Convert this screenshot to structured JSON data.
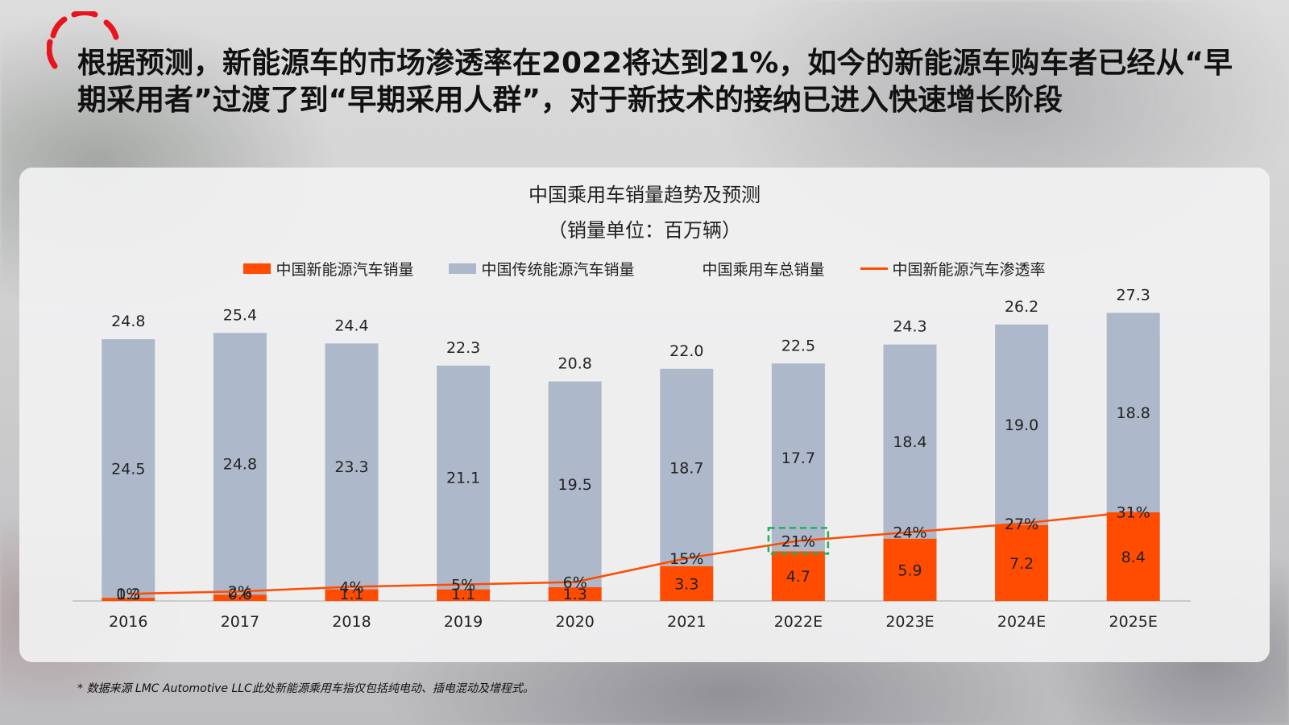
{
  "headline": "根据预测，新能源车的市场渗透率在2022将达到21%，如今的新能源车购车者已经从“早期采用者”过渡了到“早期采用人群”，对于新技术的接纳已进入快速增长阶段",
  "footnote": "* 数据来源 LMC Automotive LLC此处新能源乘用车指仅包括纯电动、插电混动及增程式。",
  "colors": {
    "nev": "#FF4C00",
    "ice": "#ADB9CA",
    "line": "#FF4C00",
    "highlight": "#22B05A",
    "accent": "#E8141E"
  },
  "chart_data": {
    "type": "bar",
    "title": "中国乘用车销量趋势及预测",
    "subtitle": "（销量单位：百万辆）",
    "categories": [
      "2016",
      "2017",
      "2018",
      "2019",
      "2020",
      "2021",
      "2022E",
      "2023E",
      "2024E",
      "2025E"
    ],
    "series": [
      {
        "name": "中国新能源汽车销量",
        "kind": "stacked-bar",
        "values": [
          "0.3",
          "0.6",
          "1.1",
          "1.1",
          "1.3",
          "3.3",
          "4.7",
          "5.9",
          "7.2",
          "8.4"
        ]
      },
      {
        "name": "中国传统能源汽车销量",
        "kind": "stacked-bar",
        "values": [
          "24.5",
          "24.8",
          "23.3",
          "21.1",
          "19.5",
          "18.7",
          "17.7",
          "18.4",
          "19.0",
          "18.8"
        ]
      },
      {
        "name": "中国乘用车总销量",
        "kind": "total-label",
        "values": [
          "24.8",
          "25.4",
          "24.4",
          "22.3",
          "20.8",
          "22.0",
          "22.5",
          "24.3",
          "26.2",
          "27.3"
        ]
      },
      {
        "name": "中国新能源汽车渗透率",
        "kind": "line",
        "values": [
          "1%",
          "2%",
          "4%",
          "5%",
          "6%",
          "15%",
          "21%",
          "24%",
          "27%",
          "31%"
        ]
      }
    ],
    "highlight_category": "2022E",
    "ylim": [
      0,
      30
    ],
    "grid": false,
    "legend_position": "top"
  }
}
